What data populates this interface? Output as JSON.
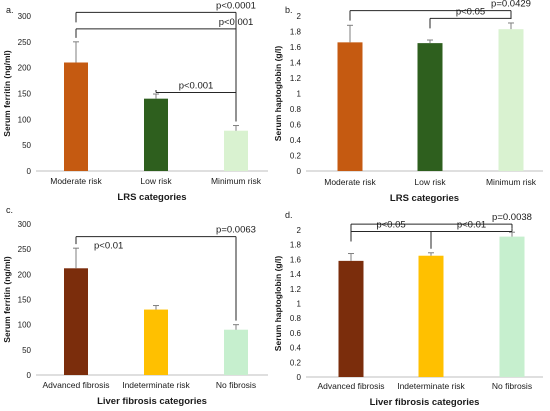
{
  "chart_data": [
    {
      "panel": "a.",
      "type": "bar",
      "xlabel": "LRS categories",
      "ylabel": "Serum ferritin (ng/ml)",
      "ylim": [
        0,
        300
      ],
      "yticks": [
        0,
        50,
        100,
        150,
        200,
        250,
        300
      ],
      "categories": [
        "Moderate risk",
        "Low risk",
        "Minimum risk"
      ],
      "values": [
        210,
        140,
        78
      ],
      "errors": [
        40,
        9,
        10
      ],
      "colors": [
        "#c55a11",
        "#2e5f1e",
        "#d9f2d0"
      ],
      "grid": false,
      "brackets": [
        {
          "label": "p<0.0001",
          "from": 0,
          "to": 2,
          "level": 307
        },
        {
          "label": "p<0.001",
          "from": 0,
          "to": 2,
          "level": 275
        },
        {
          "label": "p<0.001",
          "from": 1,
          "to": 2,
          "level": 152
        }
      ]
    },
    {
      "panel": "b.",
      "type": "bar",
      "xlabel": "LRS categories",
      "ylabel": "Serum haptoglobin (g/l)",
      "ylim": [
        0,
        2
      ],
      "yticks": [
        "0",
        "0.2",
        "0.4",
        "0.6",
        "0.8",
        "1",
        "1.2",
        "1.4",
        "1.6",
        "1.8",
        "2"
      ],
      "categories": [
        "Moderate risk",
        "Low risk",
        "Minimum risk"
      ],
      "values": [
        1.66,
        1.65,
        1.83
      ],
      "errors": [
        0.22,
        0.04,
        0.08
      ],
      "colors": [
        "#c55a11",
        "#2e5f1e",
        "#d9f2d0"
      ],
      "grid": false,
      "brackets": [
        {
          "label": "p=0.0429",
          "from": 0,
          "to": 2,
          "level": 2.07
        },
        {
          "label": "p<0.05",
          "from": 1,
          "to": 2,
          "level": 1.97
        }
      ]
    },
    {
      "panel": "c.",
      "type": "bar",
      "xlabel": "Liver fibrosis categories",
      "ylabel": "Serum ferritin (ng/ml)",
      "ylim": [
        0,
        300
      ],
      "yticks": [
        0,
        50,
        100,
        150,
        200,
        250,
        300
      ],
      "categories": [
        "Advanced fibrosis",
        "Indeterminate risk",
        "No fibrosis"
      ],
      "values": [
        212,
        130,
        90
      ],
      "errors": [
        40,
        8,
        10
      ],
      "colors": [
        "#7b2d0c",
        "#ffc000",
        "#c6efce"
      ],
      "grid": false,
      "brackets": [
        {
          "label": "p=0.0063",
          "from": 0,
          "to": 2,
          "level": 275
        },
        {
          "label": "p<0.01",
          "from": 0,
          "to": 2,
          "level": 275,
          "left_label": true
        }
      ]
    },
    {
      "panel": "d.",
      "type": "bar",
      "xlabel": "Liver fibrosis categories",
      "ylabel": "Serum haptoglobin (g/l)",
      "ylim": [
        0,
        2
      ],
      "yticks": [
        "0",
        "0.2",
        "0.4",
        "0.6",
        "0.8",
        "1",
        "1.2",
        "1.4",
        "1.6",
        "1.8",
        "2"
      ],
      "categories": [
        "Advanced fibrosis",
        "Indeterminate risk",
        "No fibrosis"
      ],
      "values": [
        1.58,
        1.65,
        1.91
      ],
      "errors": [
        0.1,
        0.04,
        0.06
      ],
      "colors": [
        "#7b2d0c",
        "#ffc000",
        "#c6efce"
      ],
      "grid": false,
      "brackets": [
        {
          "label": "p=0.0038",
          "from": 0,
          "to": 2,
          "level": 2.08
        },
        {
          "label": "p<0.05",
          "from": 0,
          "to": 1,
          "level": 1.98
        },
        {
          "label": "p<0.01",
          "from": 1,
          "to": 2,
          "level": 1.98
        }
      ]
    }
  ]
}
